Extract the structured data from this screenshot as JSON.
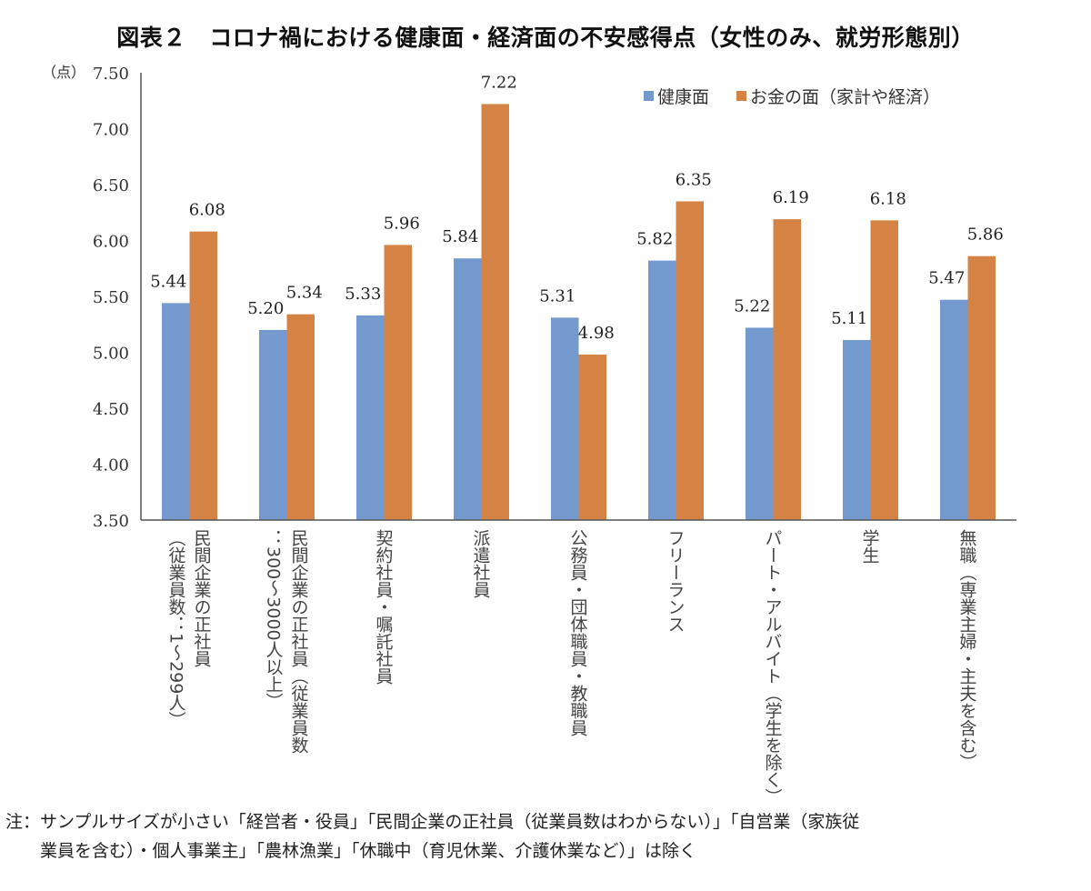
{
  "chart_data": {
    "type": "bar",
    "title": "図表２　コロナ禍における健康面・経済面の不安感得点（女性のみ、就労形態別）",
    "ylabel": "（点）",
    "xlabel": "",
    "ylim": [
      3.5,
      7.5
    ],
    "yticks": [
      "7.50",
      "7.00",
      "6.50",
      "6.00",
      "5.50",
      "5.00",
      "4.50",
      "4.00",
      "3.50"
    ],
    "ytick_values": [
      7.5,
      7.0,
      6.5,
      6.0,
      5.5,
      5.0,
      4.5,
      4.0,
      3.5
    ],
    "grid": false,
    "legend_position": "top-right",
    "categories": [
      [
        "民間企業の正社員",
        "（従業員数：1～299人）"
      ],
      [
        "民間企業の正社員（従業員数",
        "：300～3000人以上）"
      ],
      [
        "契約社員・嘱託社員"
      ],
      [
        "派遣社員"
      ],
      [
        "公務員・団体職員・教職員"
      ],
      [
        "フリーランス"
      ],
      [
        "パート・アルバイト（学生を除く）"
      ],
      [
        "学生"
      ],
      [
        "無職（専業主婦・主夫を含む）"
      ]
    ],
    "series": [
      {
        "name": "健康面",
        "color": "#7399CE",
        "values": [
          5.44,
          5.2,
          5.33,
          5.84,
          5.31,
          5.82,
          5.22,
          5.11,
          5.47
        ],
        "labels": [
          "5.44",
          "5.20",
          "5.33",
          "5.84",
          "5.31",
          "5.82",
          "5.22",
          "5.11",
          "5.47"
        ]
      },
      {
        "name": "お金の面（家計や経済）",
        "color": "#D48345",
        "values": [
          6.08,
          5.34,
          5.96,
          7.22,
          4.98,
          6.35,
          6.19,
          6.18,
          5.86
        ],
        "labels": [
          "6.08",
          "5.34",
          "5.96",
          "7.22",
          "4.98",
          "6.35",
          "6.19",
          "6.18",
          "5.86"
        ]
      }
    ]
  },
  "note": {
    "line1": "注：サンプルサイズが小さい「経営者・役員」「民間企業の正社員（従業員数はわからない）」「自営業（家族従",
    "line2": "業員を含む）・個人事業主」「農林漁業」「休職中（育児休業、介護休業など）」は除く"
  }
}
